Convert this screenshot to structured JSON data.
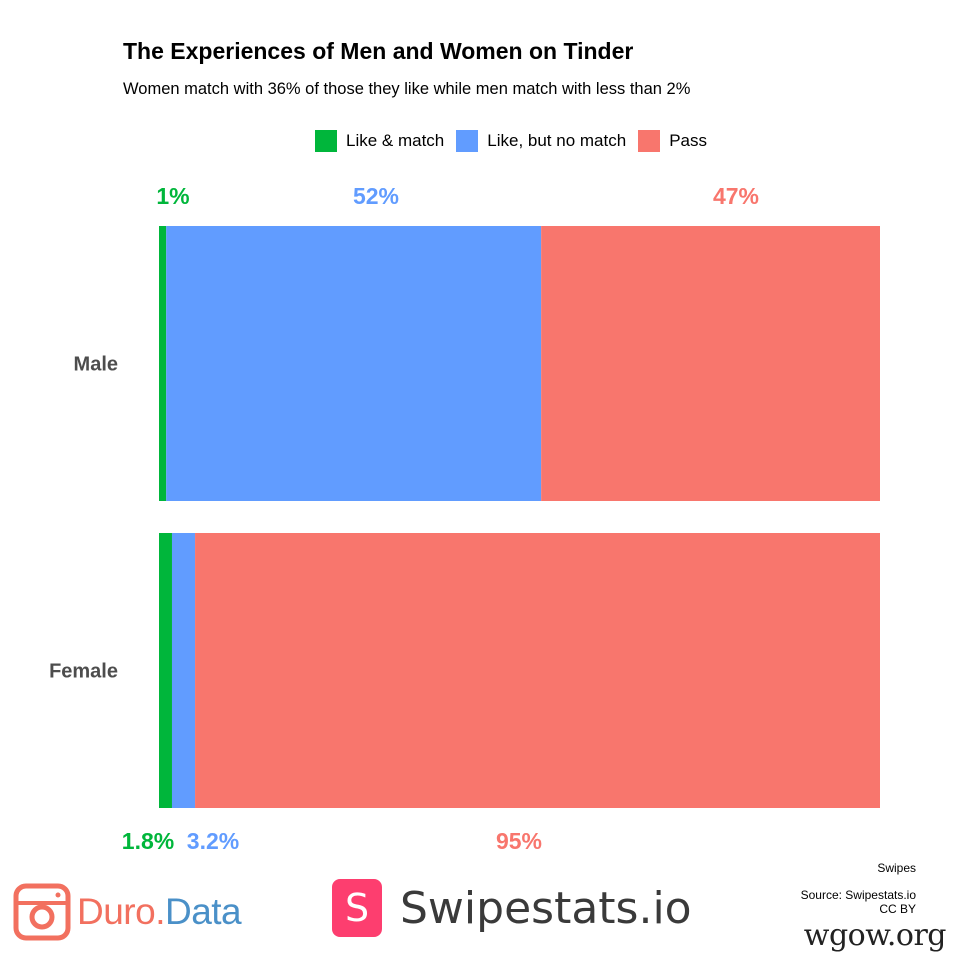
{
  "colors": {
    "like_match": "#00b63b",
    "like_no_match": "#619cff",
    "pass": "#f8766d",
    "category_label": "#4d4d4d",
    "duro_pink": "#f2705f",
    "duro_blue": "#4a90c8",
    "swipestats_pink": "#fd3e6f"
  },
  "chart_data": {
    "type": "bar",
    "orientation": "horizontal",
    "stacked": true,
    "title": "The Experiences of Men and Women on Tinder",
    "subtitle": "Women match with 36% of those they like while men match with less than 2%",
    "categories": [
      "Male",
      "Female"
    ],
    "series": [
      {
        "name": "Like & match",
        "values": [
          1,
          1.8
        ],
        "labels": [
          "1%",
          "1.8%"
        ]
      },
      {
        "name": "Like, but no match",
        "values": [
          52,
          3.2
        ],
        "labels": [
          "52%",
          "3.2%"
        ]
      },
      {
        "name": "Pass",
        "values": [
          47,
          95
        ],
        "labels": [
          "47%",
          "95%"
        ]
      }
    ],
    "xlim": [
      0,
      100
    ],
    "grid": false,
    "legend_position": "top",
    "caption_lines": [
      "Swipes",
      "Source: Swipestats.io",
      "CC BY"
    ]
  },
  "logos": {
    "duro_part1": "Duro",
    "duro_dot": ".",
    "duro_part2": "Data",
    "swipestats_badge": "S",
    "swipestats_text": "Swipestats.io",
    "watermark": "wgow.org"
  }
}
